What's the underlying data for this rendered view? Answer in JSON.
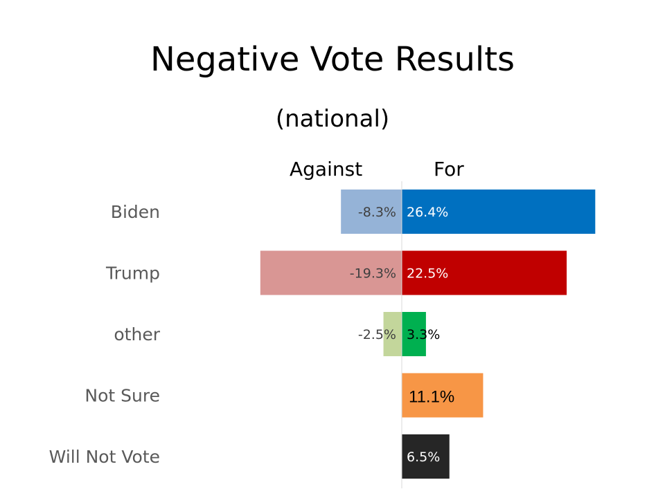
{
  "chart_data": {
    "type": "bar",
    "orientation": "horizontal-diverging",
    "title": "Negative Vote Results",
    "subtitle": "(national)",
    "left_heading": "Against",
    "right_heading": "For",
    "categories": [
      "Biden",
      "Trump",
      "other",
      "Not Sure",
      "Will Not Vote"
    ],
    "series": [
      {
        "values": [
          -8.3,
          -19.3,
          -2.5,
          null,
          null
        ],
        "labels": [
          "-8.3%",
          "-19.3%",
          "-2.5%",
          "",
          ""
        ],
        "colors": [
          "#95b3d7",
          "#d99694",
          "#c3d69b",
          "#ffffff",
          "#ffffff"
        ],
        "label_color": "#404040"
      },
      {
        "values": [
          26.4,
          22.5,
          3.3,
          11.1,
          6.5
        ],
        "labels": [
          "26.4%",
          "22.5%",
          "3.3%",
          "11.1%",
          "6.5%"
        ],
        "colors": [
          "#0070c0",
          "#c00000",
          "#00b050",
          "#f79646",
          "#262626"
        ],
        "label_colors": [
          "#ffffff",
          "#ffffff",
          "#000000",
          "#000000",
          "#ffffff"
        ]
      }
    ],
    "xlim": [
      -25,
      35
    ],
    "grid": false,
    "legend": "none"
  }
}
